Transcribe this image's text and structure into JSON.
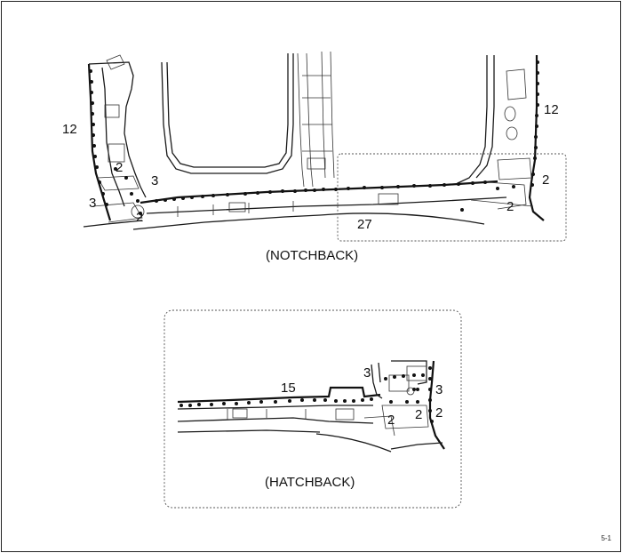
{
  "notchback": {
    "caption": "(NOTCHBACK)",
    "labels": {
      "l12_left": "12",
      "l12_right": "12",
      "l3_a": "3",
      "l3_b": "3",
      "l2_a": "2",
      "l2_b": "2",
      "l2_c": "2",
      "l2_d": "2",
      "l27": "27"
    }
  },
  "hatchback": {
    "caption": "(HATCHBACK)",
    "labels": {
      "l15": "15",
      "l3_a": "3",
      "l3_b": "3",
      "l2_a": "2",
      "l2_b": "2",
      "l2_c": "2"
    }
  },
  "page_number": "5-1"
}
